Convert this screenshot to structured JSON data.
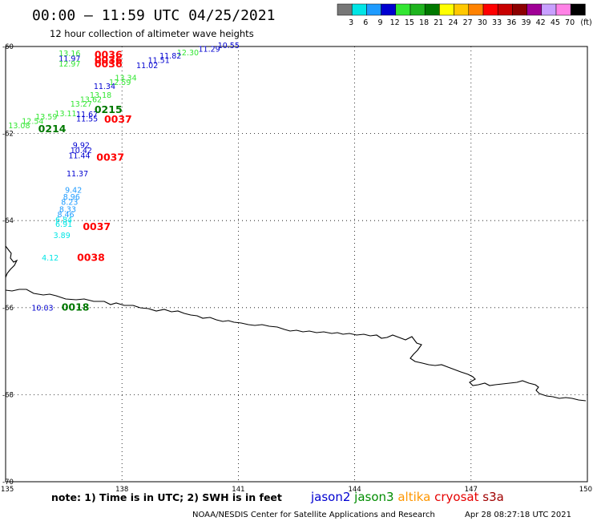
{
  "header": {
    "title": "00:00 – 11:59 UTC 04/25/2021",
    "subtitle": "12 hour collection of altimeter wave heights"
  },
  "color_scale": {
    "unit": "(ft)",
    "bins": [
      {
        "label": "3",
        "color": "#777777"
      },
      {
        "label": "6",
        "color": "#00e5e5"
      },
      {
        "label": "9",
        "color": "#1e9bff"
      },
      {
        "label": "12",
        "color": "#0000d0"
      },
      {
        "label": "15",
        "color": "#32e632"
      },
      {
        "label": "18",
        "color": "#1eb41e"
      },
      {
        "label": "21",
        "color": "#007800"
      },
      {
        "label": "24",
        "color": "#ffff00"
      },
      {
        "label": "27",
        "color": "#ffc800"
      },
      {
        "label": "30",
        "color": "#ff8200"
      },
      {
        "label": "33",
        "color": "#ff0000"
      },
      {
        "label": "36",
        "color": "#c80000"
      },
      {
        "label": "39",
        "color": "#8c0000"
      },
      {
        "label": "42",
        "color": "#a00096"
      },
      {
        "label": "45",
        "color": "#c8a0ff"
      },
      {
        "label": "70",
        "color": "#ff82e6"
      },
      {
        "label": "",
        "color": "#000000"
      }
    ]
  },
  "axes": {
    "lat_labels": [
      "-60",
      "-62",
      "-64",
      "-66",
      "-68",
      "-70"
    ],
    "lon_labels": [
      "135",
      "138",
      "141",
      "144",
      "147",
      "150"
    ]
  },
  "wave_heights": [
    {
      "text": "10.55",
      "lon": 140.75,
      "lat": -60.04,
      "color": "#0000d0"
    },
    {
      "text": "11.29",
      "lon": 140.25,
      "lat": -60.12,
      "color": "#0000d0"
    },
    {
      "text": "12.30",
      "lon": 139.7,
      "lat": -60.2,
      "color": "#32e632"
    },
    {
      "text": "11.82",
      "lon": 139.25,
      "lat": -60.28,
      "color": "#0000d0"
    },
    {
      "text": "11.51",
      "lon": 138.95,
      "lat": -60.38,
      "color": "#0000d0"
    },
    {
      "text": "11.02",
      "lon": 138.65,
      "lat": -60.5,
      "color": "#0000d0"
    },
    {
      "text": "13.16",
      "lon": 136.65,
      "lat": -60.22,
      "color": "#32e632"
    },
    {
      "text": "11.97",
      "lon": 136.65,
      "lat": -60.34,
      "color": "#0000d0"
    },
    {
      "text": "12.97",
      "lon": 136.65,
      "lat": -60.46,
      "color": "#32e632"
    },
    {
      "text": "13.34",
      "lon": 138.1,
      "lat": -60.78,
      "color": "#32e632"
    },
    {
      "text": "12.59",
      "lon": 137.95,
      "lat": -60.88,
      "color": "#32e632"
    },
    {
      "text": "11.34",
      "lon": 137.55,
      "lat": -60.98,
      "color": "#0000d0"
    },
    {
      "text": "13.18",
      "lon": 137.45,
      "lat": -61.18,
      "color": "#32e632"
    },
    {
      "text": "13.62",
      "lon": 137.2,
      "lat": -61.28,
      "color": "#32e632"
    },
    {
      "text": "13.27",
      "lon": 136.95,
      "lat": -61.38,
      "color": "#32e632"
    },
    {
      "text": "13.11",
      "lon": 136.55,
      "lat": -61.6,
      "color": "#32e632"
    },
    {
      "text": "13.59",
      "lon": 136.05,
      "lat": -61.68,
      "color": "#32e632"
    },
    {
      "text": "12.54",
      "lon": 135.7,
      "lat": -61.78,
      "color": "#32e632"
    },
    {
      "text": "13.08",
      "lon": 135.35,
      "lat": -61.88,
      "color": "#32e632"
    },
    {
      "text": "11.67",
      "lon": 137.1,
      "lat": -61.62,
      "color": "#0000d0"
    },
    {
      "text": "11.55",
      "lon": 137.1,
      "lat": -61.72,
      "color": "#0000d0"
    },
    {
      "text": "9.92",
      "lon": 136.95,
      "lat": -62.33,
      "color": "#0000d0"
    },
    {
      "text": "10.42",
      "lon": 136.95,
      "lat": -62.45,
      "color": "#0000d0"
    },
    {
      "text": "11.44",
      "lon": 136.9,
      "lat": -62.57,
      "color": "#0000d0"
    },
    {
      "text": "11.37",
      "lon": 136.85,
      "lat": -62.98,
      "color": "#0000d0"
    },
    {
      "text": "9.42",
      "lon": 136.75,
      "lat": -63.36,
      "color": "#1e9bff"
    },
    {
      "text": "8.96",
      "lon": 136.7,
      "lat": -63.52,
      "color": "#1e9bff"
    },
    {
      "text": "8.23",
      "lon": 136.65,
      "lat": -63.64,
      "color": "#1e9bff"
    },
    {
      "text": "8.33",
      "lon": 136.6,
      "lat": -63.8,
      "color": "#1e9bff"
    },
    {
      "text": "8.46",
      "lon": 136.55,
      "lat": -63.92,
      "color": "#1e9bff"
    },
    {
      "text": "6.84",
      "lon": 136.5,
      "lat": -64.04,
      "color": "#00e5e5"
    },
    {
      "text": "6.91",
      "lon": 136.5,
      "lat": -64.14,
      "color": "#00e5e5"
    },
    {
      "text": "3.89",
      "lon": 136.45,
      "lat": -64.4,
      "color": "#00e5e5"
    },
    {
      "text": "4.12",
      "lon": 136.15,
      "lat": -64.92,
      "color": "#00e5e5"
    },
    {
      "text": "10.03",
      "lon": 135.95,
      "lat": -66.07,
      "color": "#0000d0"
    }
  ],
  "pass_times": [
    {
      "text": "0036",
      "lon": 137.65,
      "lat": -60.27,
      "color": "#ff0000"
    },
    {
      "text": "0036",
      "lon": 137.65,
      "lat": -60.39,
      "color": "#ff0000"
    },
    {
      "text": "0036",
      "lon": 137.65,
      "lat": -60.48,
      "color": "#ff0000"
    },
    {
      "text": "0215",
      "lon": 137.65,
      "lat": -61.53,
      "color": "#007800"
    },
    {
      "text": "0037",
      "lon": 137.9,
      "lat": -61.75,
      "color": "#ff0000"
    },
    {
      "text": "0214",
      "lon": 136.2,
      "lat": -61.97,
      "color": "#007800"
    },
    {
      "text": "0037",
      "lon": 137.7,
      "lat": -62.62,
      "color": "#ff0000"
    },
    {
      "text": "0037",
      "lon": 137.35,
      "lat": -64.22,
      "color": "#ff0000"
    },
    {
      "text": "0038",
      "lon": 137.2,
      "lat": -64.93,
      "color": "#ff0000"
    },
    {
      "text": "0018",
      "lon": 136.8,
      "lat": -66.07,
      "color": "#007800"
    }
  ],
  "footer": {
    "note": "note:  1) Time is in UTC; 2) SWH is in feet",
    "satellites": [
      {
        "name": "jason2",
        "color": "#0000d0"
      },
      {
        "name": "jason3",
        "color": "#008c00"
      },
      {
        "name": "altika",
        "color": "#ff9600"
      },
      {
        "name": "cryosat",
        "color": "#e60000"
      },
      {
        "name": "s3a",
        "color": "#a00000"
      }
    ],
    "credit": "NOAA/NESDIS Center for Satellite Applications and Research",
    "timestamp": "Apr 28 08:27:18 UTC 2021"
  }
}
